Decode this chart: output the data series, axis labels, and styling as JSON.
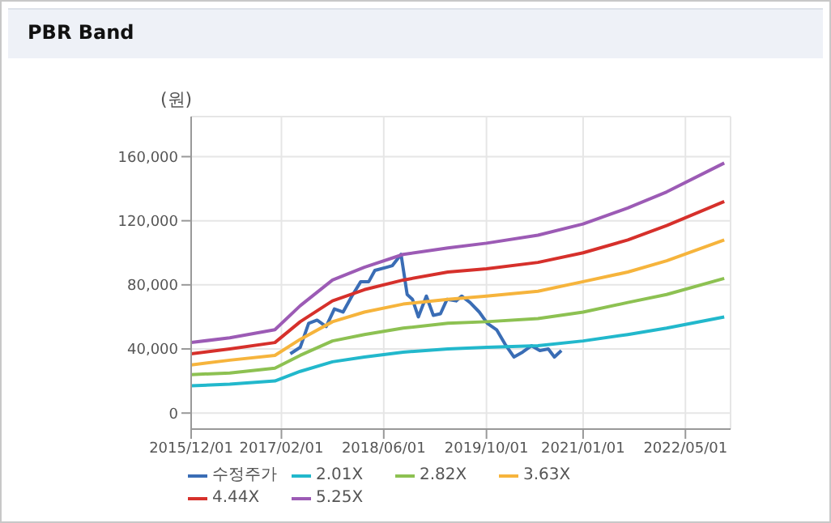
{
  "chart_data": {
    "type": "line",
    "title": "PBR Band",
    "ylabel": "(원)",
    "x": [
      "2015-12-01",
      "2016-06-01",
      "2017-01-01",
      "2017-05-01",
      "2017-10-01",
      "2018-03-01",
      "2018-09-01",
      "2019-04-01",
      "2019-10-01",
      "2020-06-01",
      "2021-01-01",
      "2021-08-01",
      "2022-02-01",
      "2022-11-01"
    ],
    "series": [
      {
        "name": "수정주가",
        "color": "#3a6db5",
        "x": [
          "2017-03-15",
          "2017-05-01",
          "2017-06-10",
          "2017-07-20",
          "2017-09-01",
          "2017-10-10",
          "2017-11-20",
          "2018-01-01",
          "2018-02-12",
          "2018-03-22",
          "2018-04-20",
          "2018-06-15",
          "2018-07-12",
          "2018-08-22",
          "2018-09-20",
          "2018-10-15",
          "2018-11-12",
          "2018-12-20",
          "2019-01-22",
          "2019-02-25",
          "2019-03-28",
          "2019-05-10",
          "2019-06-05",
          "2019-07-15",
          "2019-08-28",
          "2019-10-05",
          "2019-11-18",
          "2019-12-28",
          "2020-02-08",
          "2020-03-20",
          "2020-05-01",
          "2020-06-10",
          "2020-07-20",
          "2020-08-18",
          "2020-09-20"
        ],
        "values": [
          37000,
          41000,
          56000,
          58000,
          54000,
          65000,
          63000,
          73000,
          82000,
          82000,
          89000,
          91000,
          92000,
          99000,
          74000,
          71000,
          60000,
          73000,
          61000,
          62000,
          71000,
          70000,
          73000,
          69000,
          63000,
          56000,
          52000,
          43000,
          35000,
          38000,
          42000,
          39000,
          40000,
          35000,
          39000
        ]
      },
      {
        "name": "2.01X",
        "color": "#22b8cc",
        "values": [
          17000,
          18000,
          20000,
          26000,
          32000,
          35000,
          38000,
          40000,
          41000,
          42000,
          45000,
          49000,
          53000,
          60000
        ]
      },
      {
        "name": "2.82X",
        "color": "#8dc152",
        "values": [
          24000,
          25000,
          28000,
          36000,
          45000,
          49000,
          53000,
          56000,
          57000,
          59000,
          63000,
          69000,
          74000,
          84000
        ]
      },
      {
        "name": "3.63X",
        "color": "#f6b43c",
        "values": [
          30000,
          33000,
          36000,
          46000,
          57000,
          63000,
          68000,
          71000,
          73000,
          76000,
          82000,
          88000,
          95000,
          108000
        ]
      },
      {
        "name": "4.44X",
        "color": "#d6302b",
        "values": [
          37000,
          40000,
          44000,
          57000,
          70000,
          77000,
          83000,
          88000,
          90000,
          94000,
          100000,
          108000,
          117000,
          132000
        ]
      },
      {
        "name": "5.25X",
        "color": "#9c5bb5",
        "values": [
          44000,
          47000,
          52000,
          67000,
          83000,
          91000,
          99000,
          103000,
          106000,
          111000,
          118000,
          128000,
          138000,
          156000
        ]
      }
    ],
    "xlim": [
      "2015-12-01",
      "2022-12-01"
    ],
    "xticks": [
      {
        "value": "2015-12-01",
        "label": "2015/12/01"
      },
      {
        "value": "2017-02-01",
        "label": "2017/02/01"
      },
      {
        "value": "2018-06-01",
        "label": "2018/06/01"
      },
      {
        "value": "2019-10-01",
        "label": "2019/10/01"
      },
      {
        "value": "2021-01-01",
        "label": "2021/01/01"
      },
      {
        "value": "2022-05-01",
        "label": "2022/05/01"
      }
    ],
    "ylim": [
      -10000,
      185000
    ],
    "yticks": [
      0,
      {
        "value": 40000,
        "label": "40,000"
      },
      {
        "value": 80000,
        "label": "80,000"
      },
      {
        "value": 120000,
        "label": "120,000"
      },
      {
        "value": 160000,
        "label": "160,000"
      }
    ],
    "grid": true,
    "legend": "bottom",
    "marker": "none",
    "line_style": "solid"
  }
}
